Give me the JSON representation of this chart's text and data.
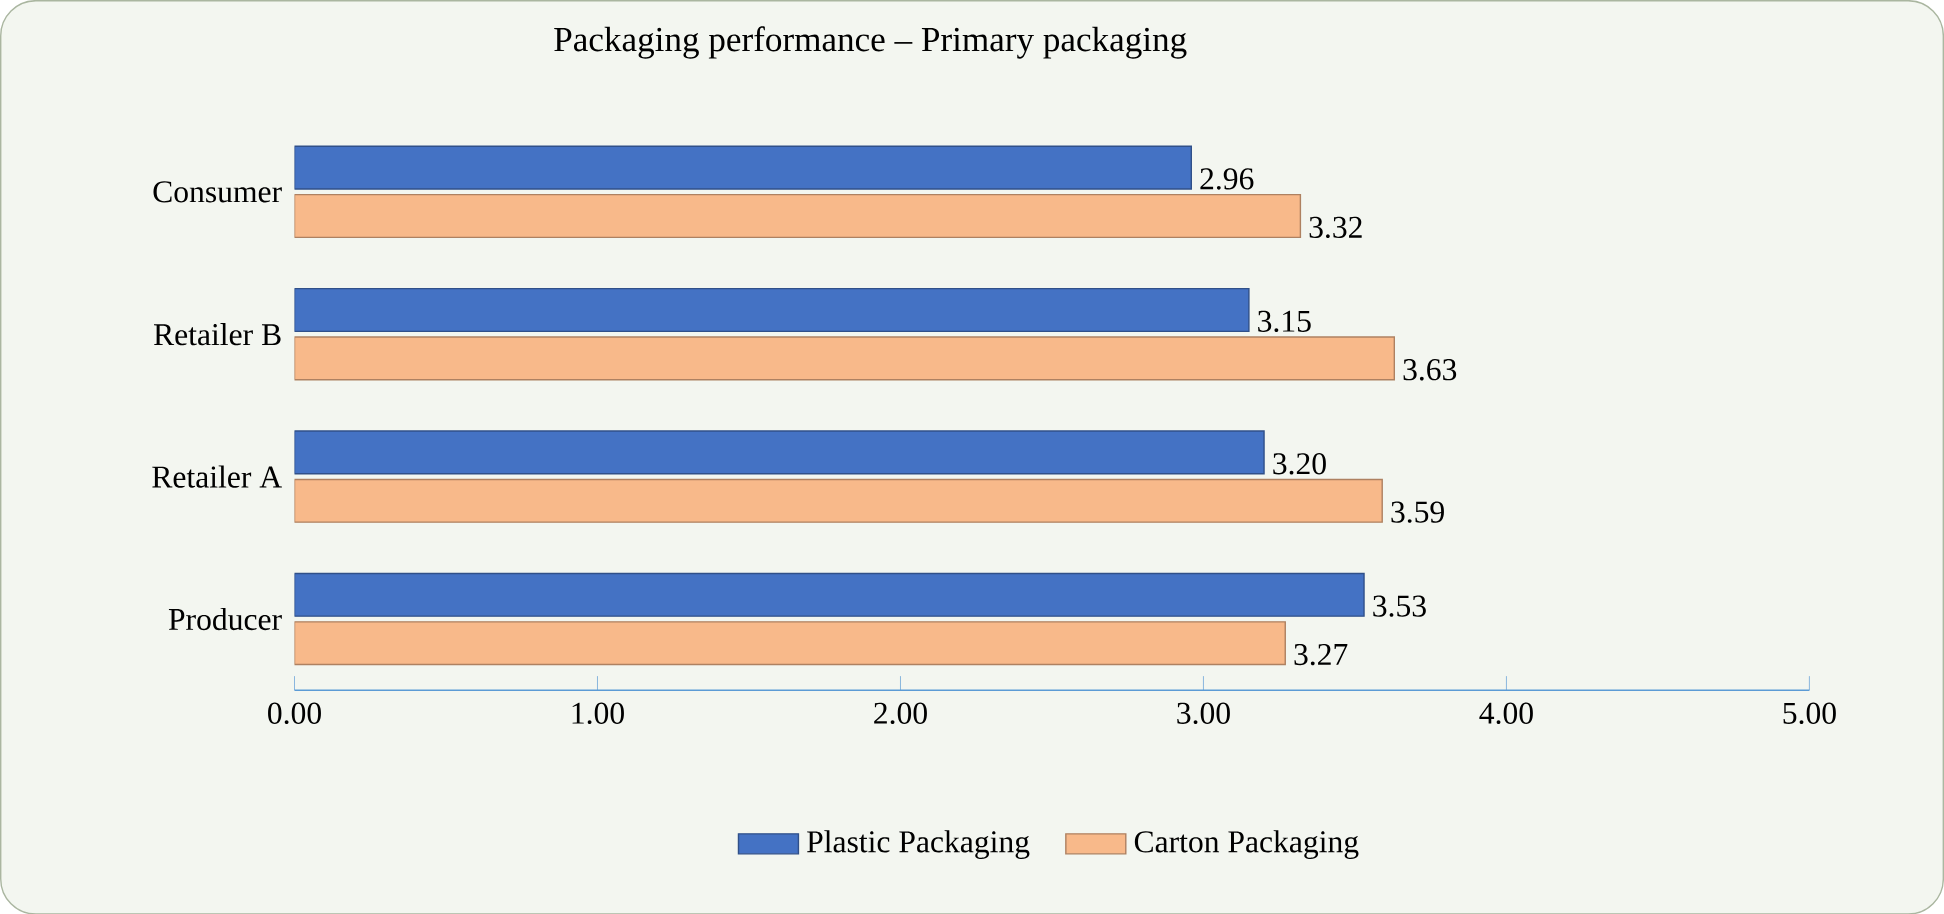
{
  "chart_data": {
    "type": "bar",
    "orientation": "horizontal",
    "title": "Packaging performance – Primary packaging",
    "categories": [
      "Consumer",
      "Retailer B",
      "Retailer A",
      "Producer"
    ],
    "series": [
      {
        "name": "Plastic Packaging",
        "color": "#4472c4",
        "values": [
          2.96,
          3.15,
          3.2,
          3.53
        ],
        "value_labels": [
          "2.96",
          "3.15",
          "3.20",
          "3.53"
        ]
      },
      {
        "name": "Carton Packaging",
        "color": "#f8b98a",
        "values": [
          3.32,
          3.63,
          3.59,
          3.27
        ],
        "value_labels": [
          "3.32",
          "3.63",
          "3.59",
          "3.27"
        ]
      }
    ],
    "xlim": [
      0,
      5
    ],
    "xticks": [
      {
        "value": 0,
        "label": "0.00"
      },
      {
        "value": 1,
        "label": "1.00"
      },
      {
        "value": 2,
        "label": "2.00"
      },
      {
        "value": 3,
        "label": "3.00"
      },
      {
        "value": 4,
        "label": "4.00"
      },
      {
        "value": 5,
        "label": "5.00"
      }
    ],
    "grid": false,
    "legend": "bottom"
  }
}
